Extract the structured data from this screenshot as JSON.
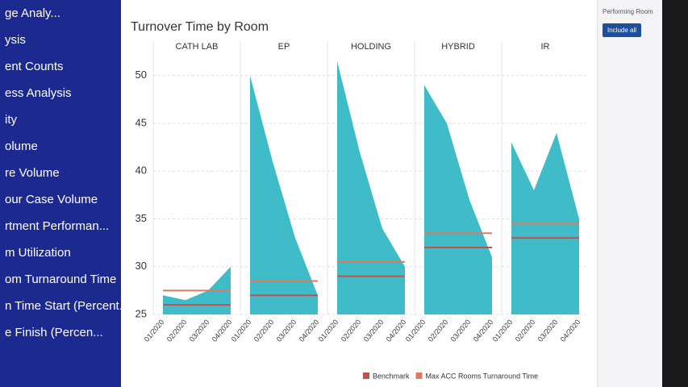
{
  "sidebar": {
    "items": [
      "ge Analy...",
      "ysis",
      "ent Counts",
      "ess Analysis",
      "ity",
      "olume",
      "re Volume",
      "our Case Volume",
      "rtment Performan...",
      "m Utilization",
      "om Turnaround Time",
      "n Time Start (Percent...",
      "e Finish (Percen..."
    ]
  },
  "filter": {
    "title": "Performing Room",
    "button": "Include all"
  },
  "chart_data": {
    "type": "area",
    "title": "Turnover Time by Room",
    "color": "#3fbcc8",
    "ylim": [
      25,
      52
    ],
    "yticks": [
      25,
      30,
      35,
      40,
      45,
      50
    ],
    "grid": true,
    "panels": [
      {
        "name": "CATH LAB",
        "categories": [
          "01/2020",
          "02/2020",
          "03/2020",
          "04/2020"
        ],
        "values": [
          27,
          26.5,
          27.5,
          30
        ]
      },
      {
        "name": "EP",
        "categories": [
          "01/2020",
          "02/2020",
          "03/2020",
          "04/2020"
        ],
        "values": [
          50,
          41,
          33,
          27
        ]
      },
      {
        "name": "HOLDING",
        "categories": [
          "01/2020",
          "02/2020",
          "03/2020",
          "04/2020"
        ],
        "values": [
          51.5,
          42,
          34,
          30
        ]
      },
      {
        "name": "HYBRID",
        "categories": [
          "01/2020",
          "02/2020",
          "03/2020",
          "04/2020"
        ],
        "values": [
          49,
          45,
          37,
          31
        ]
      },
      {
        "name": "IR",
        "categories": [
          "01/2020",
          "02/2020",
          "03/2020",
          "04/2020"
        ],
        "values": [
          43,
          38,
          44,
          35
        ]
      }
    ],
    "lines": [
      {
        "name": "Benchmark",
        "color": "#c0504d",
        "values": [
          26,
          27,
          29,
          32,
          33
        ]
      },
      {
        "name": "Max ACC Rooms Turnaround Time",
        "color": "#e07a5f",
        "values": [
          27.5,
          28.5,
          30.5,
          33.5,
          34.5
        ]
      }
    ]
  }
}
